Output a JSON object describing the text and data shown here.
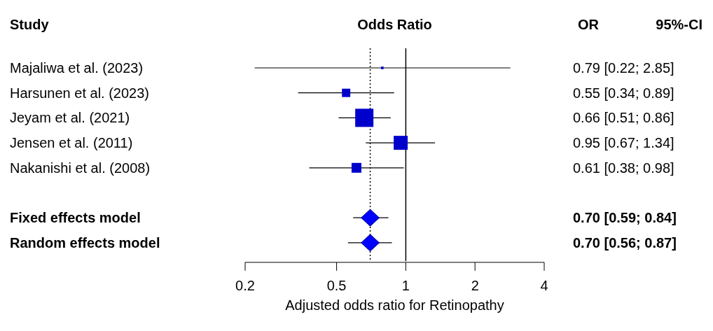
{
  "chart_data": {
    "type": "scatter",
    "orientation": "horizontal",
    "title": "Odds Ratio",
    "ylabel": "Study",
    "xlabel": "Adjusted odds ratio for Retinopathy",
    "categories": [
      "Majaliwa et al. (2023)",
      "Harsunen et al. (2023)",
      "Jeyam et al. (2021)",
      "Jensen et al. (2011)",
      "Nakanishi et al. (2008)",
      null,
      "Fixed effects model",
      "Random effects model"
    ],
    "series": [
      {
        "marker": "square",
        "color": "#0000cc",
        "values": [
          0.79,
          0.55,
          0.66,
          0.95,
          0.61,
          null,
          null,
          null
        ],
        "errors": [
          [
            0.22,
            2.85
          ],
          [
            0.34,
            0.89
          ],
          [
            0.51,
            0.86
          ],
          [
            0.67,
            1.34
          ],
          [
            0.38,
            0.98
          ],
          null,
          null,
          null
        ],
        "sizes": [
          0.02,
          0.21,
          1,
          0.59,
          0.29,
          null,
          null,
          null
        ],
        "value_labels": [
          "0.79 [0.22; 2.85]",
          "0.55 [0.34; 0.89]",
          "0.66 [0.51; 0.86]",
          "0.95 [0.67; 1.34]",
          "0.61 [0.38; 0.98]",
          null,
          null,
          null
        ]
      },
      {
        "marker": "diamond",
        "color": "#0000ff",
        "values": [
          null,
          null,
          null,
          null,
          null,
          null,
          0.7,
          0.7
        ],
        "errors": [
          null,
          null,
          null,
          null,
          null,
          null,
          [
            0.59,
            0.84
          ],
          [
            0.56,
            0.87
          ]
        ]
      }
    ],
    "log": "x",
    "xlim": [
      0.2,
      4
    ],
    "xticks": [
      0.2,
      0.5,
      1,
      2,
      4
    ],
    "ref_lines": [
      {
        "axis": "x",
        "value": 1,
        "line_style": "solid",
        "color": "#000000"
      },
      {
        "axis": "x",
        "value": 0.7,
        "line_style": "dotted",
        "color": "#000000"
      }
    ],
    "annotations": [
      "OR",
      "95%-CI",
      "0.70 [0.59; 0.84]",
      "0.70 [0.56; 0.87]"
    ]
  }
}
